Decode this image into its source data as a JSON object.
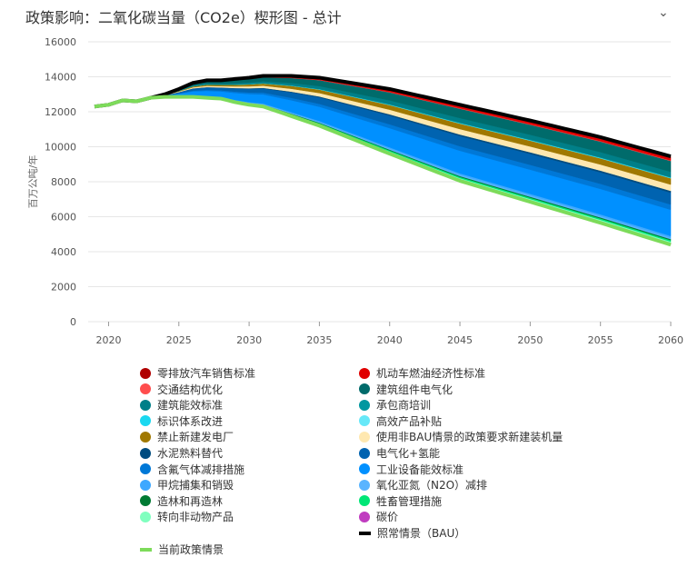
{
  "header": {
    "title": "政策影响：二氧化碳当量（CO2e）楔形图 - 总计",
    "collapse_icon": "chevron-down-icon"
  },
  "chart_data": {
    "type": "area",
    "title": "政策影响：二氧化碳当量（CO2e）楔形图 - 总计",
    "ylabel": "百万公吨/年",
    "xlabel": "",
    "xlim": [
      2019,
      2060
    ],
    "ylim": [
      0,
      16000
    ],
    "xticks": [
      2020,
      2025,
      2030,
      2035,
      2040,
      2045,
      2050,
      2055,
      2060
    ],
    "yticks": [
      0,
      2000,
      4000,
      6000,
      8000,
      10000,
      12000,
      14000,
      16000
    ],
    "grid": true,
    "legend_placement": "bottom",
    "bau": {
      "name": "照常情景（BAU）",
      "color": "#000000",
      "x": [
        2019,
        2020,
        2021,
        2022,
        2023,
        2024,
        2025,
        2026,
        2027,
        2028,
        2030,
        2031,
        2033,
        2035,
        2040,
        2045,
        2050,
        2055,
        2060
      ],
      "y": [
        12300,
        12400,
        12650,
        12600,
        12800,
        13000,
        13300,
        13650,
        13800,
        13800,
        13950,
        14050,
        14050,
        13950,
        13300,
        12400,
        11500,
        10550,
        9450
      ]
    },
    "current_policy": {
      "name": "当前政策情景",
      "color": "#7ddb5a",
      "x": [
        2019,
        2020,
        2021,
        2022,
        2023,
        2024,
        2025,
        2026,
        2027,
        2028,
        2029,
        2030,
        2031,
        2035,
        2040,
        2045,
        2050,
        2055,
        2060
      ],
      "y": [
        12300,
        12400,
        12650,
        12600,
        12800,
        12850,
        12850,
        12850,
        12800,
        12750,
        12550,
        12400,
        12300,
        11200,
        9600,
        8050,
        6850,
        5650,
        4400
      ]
    },
    "wedges": [
      {
        "name": "零排放汽车销售标准",
        "color": "#b00000",
        "value_2060": 80
      },
      {
        "name": "机动车燃油经济性标准",
        "color": "#e00000",
        "value_2060": 150
      },
      {
        "name": "交通结构优化",
        "color": "#ff4d4d",
        "value_2060": 30
      },
      {
        "name": "建筑组件电气化",
        "color": "#006b6b",
        "value_2060": 620
      },
      {
        "name": "建筑能效标准",
        "color": "#007f88",
        "value_2060": 300
      },
      {
        "name": "承包商培训",
        "color": "#0097a0",
        "value_2060": 30
      },
      {
        "name": "标识体系改进",
        "color": "#1ad8f0",
        "value_2060": 20
      },
      {
        "name": "高效产品补贴",
        "color": "#66e8f8",
        "value_2060": 20
      },
      {
        "name": "禁止新建发电厂",
        "color": "#a07800",
        "value_2060": 360
      },
      {
        "name": "使用非BAU情景的政策要求新建装机量",
        "color": "#ffe8b0",
        "value_2060": 360
      },
      {
        "name": "水泥熟料替代",
        "color": "#004c80",
        "value_2060": 100
      },
      {
        "name": "电气化+氢能",
        "color": "#0063b0",
        "value_2060": 680
      },
      {
        "name": "含氟气体减排措施",
        "color": "#0078d7",
        "value_2060": 300
      },
      {
        "name": "工业设备能效标准",
        "color": "#0090ff",
        "value_2060": 1500
      },
      {
        "name": "甲烷捕集和销毁",
        "color": "#3ea8ff",
        "value_2060": 100
      },
      {
        "name": "氧化亚氮（N2O）减排",
        "color": "#5ab4ff",
        "value_2060": 80
      },
      {
        "name": "造林和再造林",
        "color": "#007a33",
        "value_2060": 60
      },
      {
        "name": "牲畜管理措施",
        "color": "#00e676",
        "value_2060": 80
      },
      {
        "name": "转向非动物产品",
        "color": "#80ffbf",
        "value_2060": 80
      },
      {
        "name": "碳价",
        "color": "#c03cc0",
        "value_2060": 100
      }
    ]
  },
  "legend_order": [
    0,
    1,
    2,
    3,
    4,
    5,
    6,
    7,
    8,
    9,
    10,
    11,
    12,
    13,
    14,
    15,
    16,
    17,
    18,
    19
  ]
}
